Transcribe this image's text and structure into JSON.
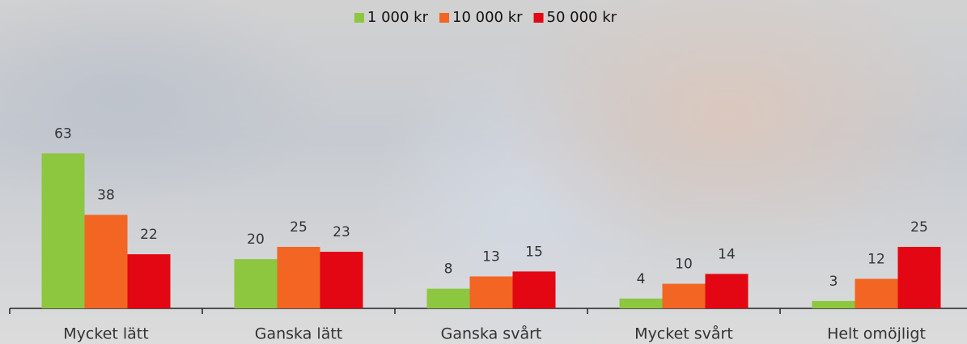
{
  "chart_data": {
    "type": "bar",
    "categories": [
      "Mycket lätt",
      "Ganska lätt",
      "Ganska svårt",
      "Mycket svårt",
      "Helt omöjligt"
    ],
    "series": [
      {
        "name": "1 000 kr",
        "color": "#8dc63f",
        "values": [
          63,
          20,
          8,
          4,
          3
        ]
      },
      {
        "name": "10 000 kr",
        "color": "#f26522",
        "values": [
          38,
          25,
          13,
          10,
          12
        ]
      },
      {
        "name": "50 000 kr",
        "color": "#e30613",
        "values": [
          22,
          23,
          15,
          14,
          25
        ]
      }
    ],
    "legend": "top"
  }
}
